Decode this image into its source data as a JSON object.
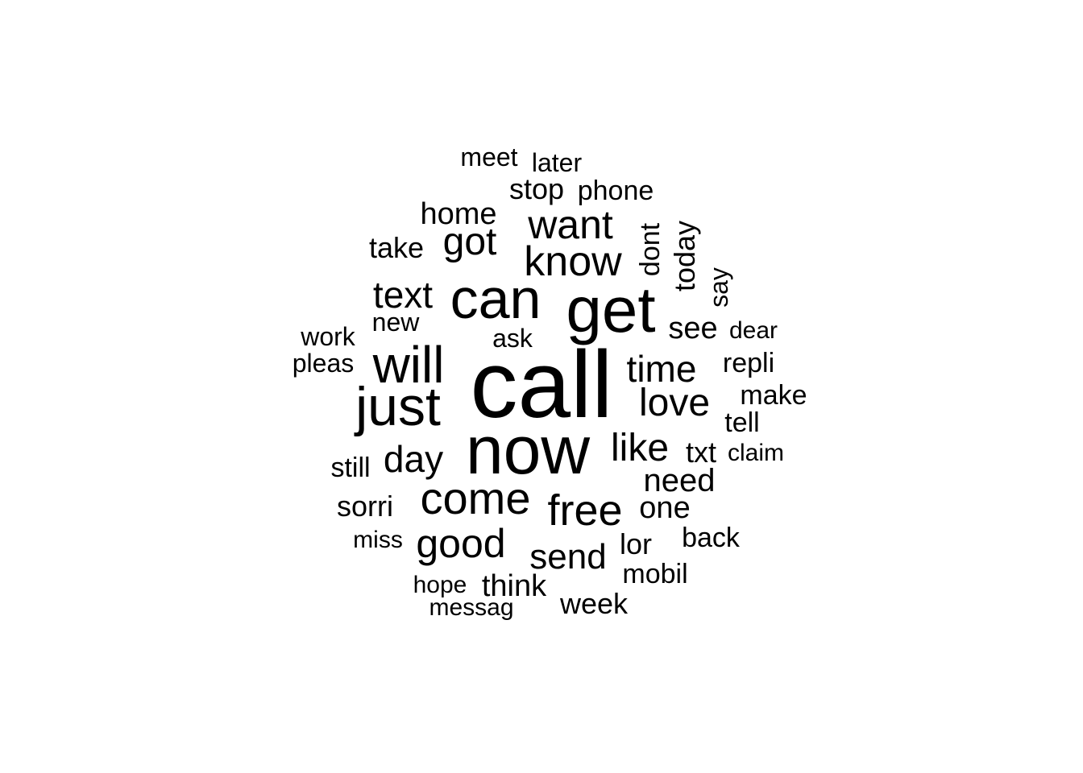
{
  "word_cloud": {
    "text_color": "#000000",
    "background_color": "#ffffff",
    "words": [
      "call",
      "now",
      "get",
      "can",
      "just",
      "will",
      "come",
      "know",
      "free",
      "want",
      "got",
      "text",
      "love",
      "like",
      "good",
      "time",
      "day",
      "send",
      "need",
      "today",
      "home",
      "dont",
      "see",
      "one",
      "sorri",
      "take",
      "stop",
      "phone",
      "tell",
      "still",
      "make",
      "repli",
      "think",
      "week",
      "lor",
      "mobil",
      "back",
      "txt",
      "pleas",
      "work",
      "new",
      "later",
      "meet",
      "say",
      "ask",
      "dear",
      "claim",
      "miss",
      "hope",
      "messag"
    ]
  }
}
